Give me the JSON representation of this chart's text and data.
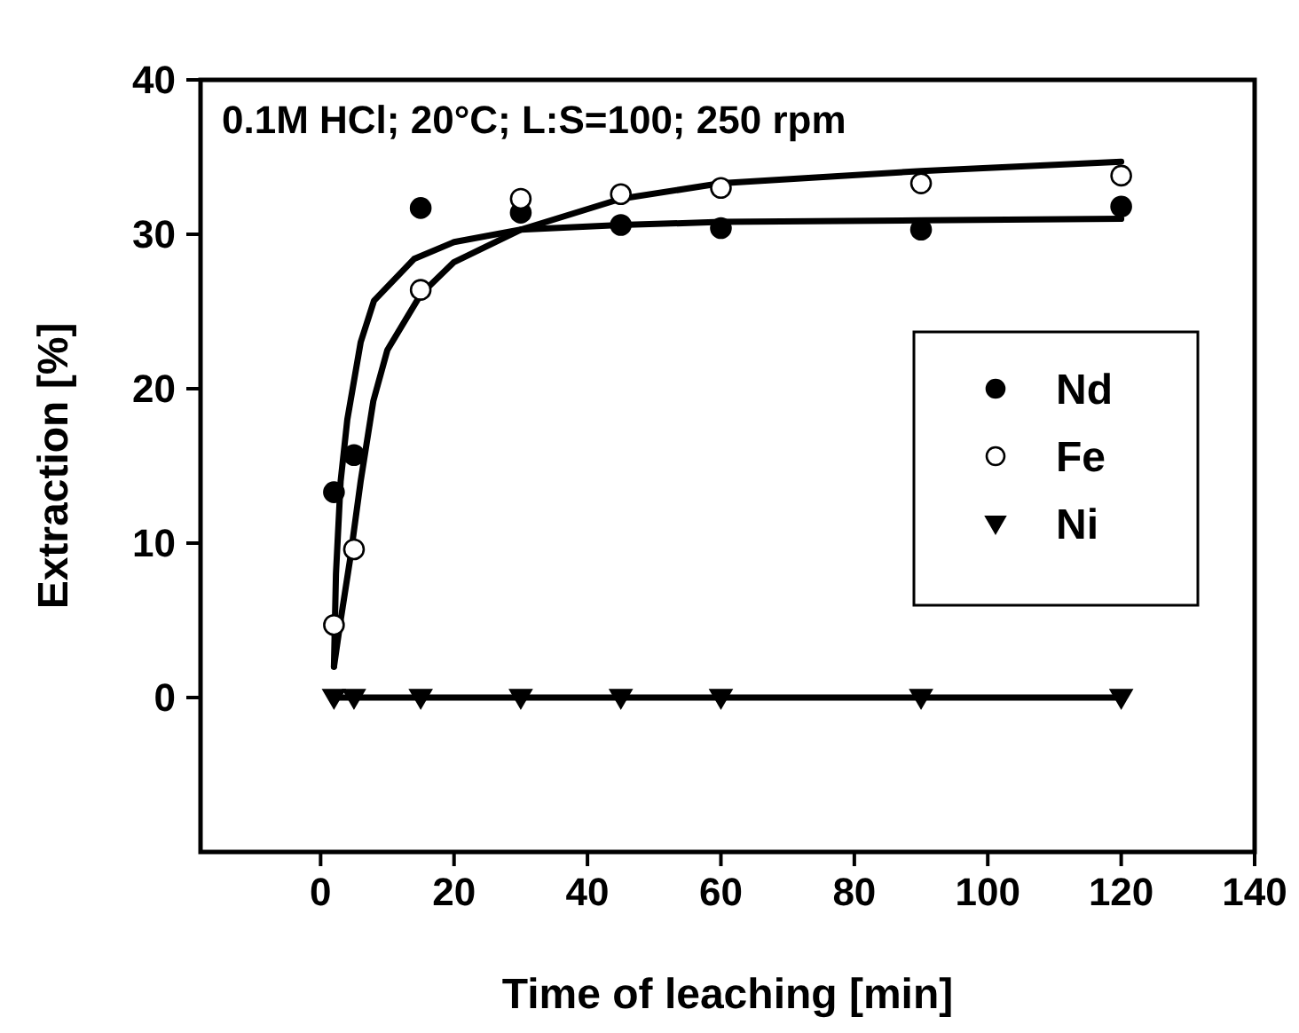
{
  "chart_data": {
    "type": "scatter",
    "xlabel": "Time of leaching [min]",
    "ylabel": "Extraction [%]",
    "annotations": [
      "0.1M HCl; 20°C; L:S=100; 250 rpm"
    ],
    "xlim": [
      -18,
      140
    ],
    "xticks": [
      0,
      20,
      40,
      60,
      80,
      100,
      120,
      140
    ],
    "ylim": [
      -10,
      40
    ],
    "yticks": [
      0,
      10,
      20,
      30,
      40
    ],
    "grid": false,
    "legend": "right",
    "series": [
      {
        "name": "Nd",
        "marker": "circle",
        "color": "#000000",
        "x": [
          2,
          5,
          15,
          30,
          45,
          60,
          90,
          120
        ],
        "values": [
          13.3,
          15.7,
          31.7,
          31.4,
          30.6,
          30.4,
          30.3,
          31.8
        ]
      },
      {
        "name": "Fe",
        "marker": "circle",
        "color": "#ffffff",
        "x": [
          2,
          5,
          15,
          30,
          45,
          60,
          90,
          120
        ],
        "values": [
          4.7,
          9.6,
          26.4,
          32.3,
          32.6,
          33,
          33.3,
          33.8
        ]
      },
      {
        "name": "Ni",
        "marker": "triangle",
        "color": "#000000",
        "x": [
          2,
          5,
          15,
          30,
          45,
          60,
          90,
          120
        ],
        "values": [
          0,
          0,
          0,
          0,
          0,
          0,
          0,
          0
        ]
      },
      {
        "type": "line",
        "marker": "none",
        "color": "#000000",
        "x": [
          2,
          2.3,
          3,
          4,
          6,
          8,
          14,
          20,
          30,
          45,
          60,
          90,
          120
        ],
        "values": [
          2,
          8,
          14,
          18,
          23,
          25.7,
          28.4,
          29.5,
          30.3,
          30.6,
          30.8,
          30.9,
          31
        ]
      },
      {
        "type": "line",
        "marker": "none",
        "color": "#000000",
        "x": [
          2,
          3,
          4.4,
          6,
          7.9,
          10,
          15,
          20,
          30,
          45,
          60,
          90,
          120
        ],
        "values": [
          2,
          5,
          8.9,
          14,
          19.2,
          22.5,
          26.1,
          28.2,
          30.3,
          32.3,
          33.3,
          34.1,
          34.7
        ]
      },
      {
        "type": "line",
        "marker": "none",
        "color": "#000000",
        "x": [
          2,
          120
        ],
        "values": [
          0,
          0
        ]
      }
    ]
  }
}
